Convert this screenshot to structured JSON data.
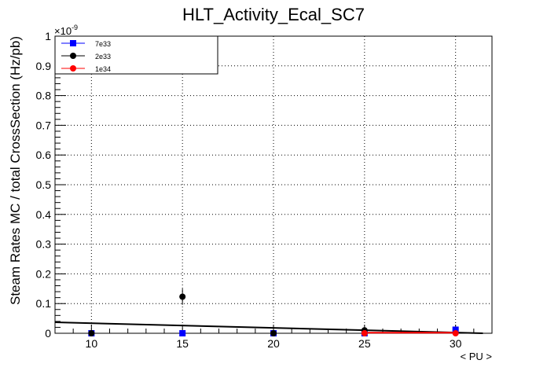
{
  "chart_data": {
    "type": "scatter",
    "title": "HLT_Activity_Ecal_SC7",
    "xlabel": "< PU >",
    "ylabel": "Steam Rates MC / total CrossSection (Hz/pb)",
    "y_multiplier": "×10",
    "y_exponent": "-9",
    "xlim": [
      8,
      32
    ],
    "ylim": [
      0,
      1
    ],
    "x_ticks": [
      10,
      15,
      20,
      25,
      30
    ],
    "x_tick_labels": [
      "10",
      "15",
      "20",
      "25",
      "30"
    ],
    "y_ticks": [
      0,
      0.1,
      0.2,
      0.3,
      0.4,
      0.5,
      0.6,
      0.7,
      0.8,
      0.9,
      1
    ],
    "y_tick_labels": [
      "0",
      "0.1",
      "0.2",
      "0.3",
      "0.4",
      "0.5",
      "0.6",
      "0.7",
      "0.8",
      "0.9",
      "1"
    ],
    "grid": true,
    "legend_position": "top-left",
    "series": [
      {
        "name": "7e33",
        "color": "#0000ff",
        "marker": "square",
        "points": [
          {
            "x": 10,
            "y": 0,
            "err": 0
          },
          {
            "x": 15,
            "y": 0,
            "err": 0
          },
          {
            "x": 20,
            "y": 0,
            "err": 0
          },
          {
            "x": 25,
            "y": 0,
            "err": 0
          },
          {
            "x": 30,
            "y": 0.012,
            "err": 0.006
          }
        ]
      },
      {
        "name": "2e33",
        "color": "#000000",
        "marker": "circle",
        "points": [
          {
            "x": 10,
            "y": 0,
            "err": 0
          },
          {
            "x": 15,
            "y": 0.123,
            "err": 0.027
          },
          {
            "x": 20,
            "y": 0,
            "err": 0
          },
          {
            "x": 25,
            "y": 0.01,
            "err": 0.006
          }
        ],
        "fit": {
          "x": [
            8,
            31.5
          ],
          "y": [
            0.037,
            0
          ]
        }
      },
      {
        "name": "1e34",
        "color": "#ff0000",
        "marker": "circle",
        "points": [
          {
            "x": 25,
            "y": 0,
            "err": 0
          },
          {
            "x": 30,
            "y": 0,
            "err": 0
          }
        ],
        "fit": {
          "x": [
            25,
            30
          ],
          "y": [
            0.002,
            0.002
          ]
        }
      }
    ]
  }
}
